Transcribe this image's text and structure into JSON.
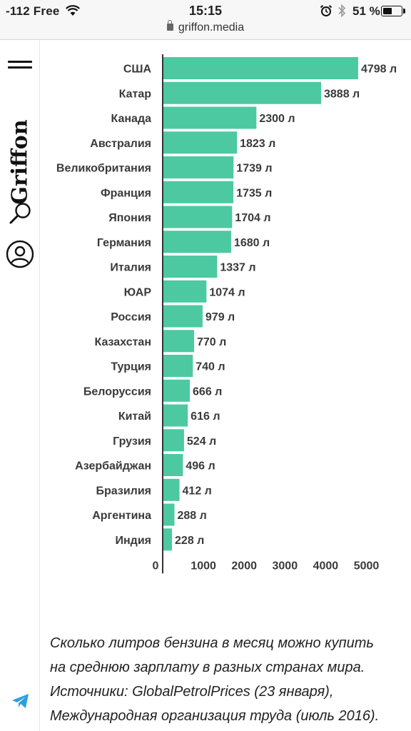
{
  "status_bar": {
    "carrier": "-112 Free",
    "time": "15:15",
    "battery_percent": "51 %",
    "url": "griffon.media",
    "battery_level": 0.51
  },
  "sidebar": {
    "logo_text": "Griffon",
    "icons": [
      "menu-icon",
      "search-icon",
      "user-icon",
      "telegram-icon"
    ]
  },
  "chart_data": {
    "type": "bar",
    "orientation": "horizontal",
    "categories": [
      "США",
      "Катар",
      "Канада",
      "Австралия",
      "Великобритания",
      "Франция",
      "Япония",
      "Германия",
      "Италия",
      "ЮАР",
      "Россия",
      "Казахстан",
      "Турция",
      "Белоруссия",
      "Китай",
      "Грузия",
      "Азербайджан",
      "Бразилия",
      "Аргентина",
      "Индия"
    ],
    "values": [
      4798,
      3888,
      2300,
      1823,
      1739,
      1735,
      1704,
      1680,
      1337,
      1074,
      979,
      770,
      740,
      666,
      616,
      524,
      496,
      412,
      288,
      228
    ],
    "value_labels": [
      "4798 л",
      "3888 л",
      "2300 л",
      "1823 л",
      "1739 л",
      "1735 л",
      "1704 л",
      "1680 л",
      "1337 л",
      "1074 л",
      "979 л",
      "770 л",
      "740 л",
      "666 л",
      "616 л",
      "524 л",
      "496 л",
      "412 л",
      "288 л",
      "228 л"
    ],
    "x_ticks": [
      "0",
      "1000",
      "2000",
      "3000",
      "4000",
      "5000"
    ],
    "xlim": [
      0,
      5000
    ],
    "grid": false,
    "bar_color": "#4cc9a0"
  },
  "caption": {
    "line1": "Сколько литров бензина в месяц можно купить",
    "line2": "на среднюю зарплату в разных странах мира.",
    "line3": "Источники: GlobalPetrolPrices (23 января),",
    "line4": "Международная организация труда (июль 2016)."
  }
}
